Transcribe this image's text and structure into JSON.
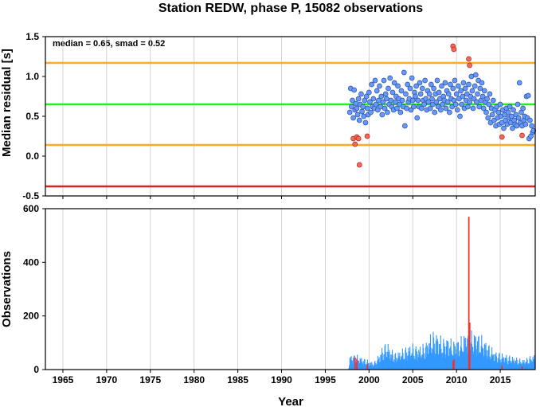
{
  "chart_data": [
    {
      "type": "scatter",
      "title": "Station REDW, phase P, 15082 observations",
      "ylabel": "Median residual [s]",
      "ylim": [
        -0.5,
        1.5
      ],
      "xlim": [
        1963,
        2019
      ],
      "grid": true,
      "y_ticks": [
        "-0.5",
        "0.0",
        "0.5",
        "1.0",
        "1.5"
      ],
      "annotation": "median = 0.65, smad = 0.52",
      "reference_lines": [
        {
          "value": 0.65,
          "color": "#22ee22"
        },
        {
          "value": 1.17,
          "color": "#ffaa22"
        },
        {
          "value": 0.14,
          "color": "#ffaa22"
        },
        {
          "value": -0.38,
          "color": "#dd2222"
        }
      ],
      "normal_color": "#6699ff",
      "outlier_color": "#ff6655",
      "points": [
        [
          1997.8,
          0.55
        ],
        [
          1997.9,
          0.85
        ],
        [
          1998.0,
          0.62
        ],
        [
          1998.1,
          0.7
        ],
        [
          1998.2,
          0.48
        ],
        [
          1998.3,
          0.83
        ],
        [
          1998.4,
          0.58
        ],
        [
          1998.5,
          0.66
        ],
        [
          1998.6,
          0.6
        ],
        [
          1998.7,
          0.52
        ],
        [
          1998.8,
          0.72
        ],
        [
          1998.9,
          0.45
        ],
        [
          1999.0,
          0.65
        ],
        [
          1999.1,
          0.78
        ],
        [
          1999.2,
          0.56
        ],
        [
          1999.3,
          0.62
        ],
        [
          1999.4,
          0.5
        ],
        [
          1999.5,
          0.7
        ],
        [
          1999.6,
          0.42
        ],
        [
          1999.7,
          0.75
        ],
        [
          1999.8,
          0.6
        ],
        [
          1999.9,
          0.52
        ],
        [
          2000.0,
          0.8
        ],
        [
          2000.1,
          0.68
        ],
        [
          2000.2,
          0.55
        ],
        [
          2000.3,
          0.9
        ],
        [
          2000.4,
          0.62
        ],
        [
          2000.5,
          0.72
        ],
        [
          2000.6,
          0.6
        ],
        [
          2000.7,
          0.95
        ],
        [
          2000.8,
          0.65
        ],
        [
          2000.9,
          0.82
        ],
        [
          2001.0,
          0.58
        ],
        [
          2001.1,
          0.7
        ],
        [
          2001.2,
          0.88
        ],
        [
          2001.3,
          0.62
        ],
        [
          2001.4,
          0.75
        ],
        [
          2001.5,
          0.52
        ],
        [
          2001.6,
          0.68
        ],
        [
          2001.7,
          0.95
        ],
        [
          2001.8,
          0.6
        ],
        [
          2001.9,
          0.78
        ],
        [
          2002.0,
          0.72
        ],
        [
          2002.1,
          0.55
        ],
        [
          2002.2,
          0.85
        ],
        [
          2002.3,
          0.65
        ],
        [
          2002.4,
          0.98
        ],
        [
          2002.5,
          0.7
        ],
        [
          2002.6,
          0.62
        ],
        [
          2002.7,
          0.8
        ],
        [
          2002.8,
          0.58
        ],
        [
          2002.9,
          0.92
        ],
        [
          2003.0,
          0.68
        ],
        [
          2003.1,
          0.75
        ],
        [
          2003.2,
          0.6
        ],
        [
          2003.3,
          0.88
        ],
        [
          2003.4,
          0.72
        ],
        [
          2003.5,
          0.65
        ],
        [
          2003.6,
          0.55
        ],
        [
          2003.7,
          0.82
        ],
        [
          2003.8,
          0.7
        ],
        [
          2003.9,
          0.62
        ],
        [
          2004.0,
          1.05
        ],
        [
          2004.1,
          0.38
        ],
        [
          2004.2,
          0.78
        ],
        [
          2004.3,
          0.6
        ],
        [
          2004.4,
          0.9
        ],
        [
          2004.5,
          0.68
        ],
        [
          2004.6,
          0.72
        ],
        [
          2004.7,
          0.85
        ],
        [
          2004.8,
          0.58
        ],
        [
          2004.9,
          0.98
        ],
        [
          2005.0,
          0.7
        ],
        [
          2005.1,
          0.62
        ],
        [
          2005.2,
          0.8
        ],
        [
          2005.3,
          0.75
        ],
        [
          2005.4,
          0.88
        ],
        [
          2005.5,
          0.48
        ],
        [
          2005.6,
          0.7
        ],
        [
          2005.7,
          0.62
        ],
        [
          2005.8,
          0.92
        ],
        [
          2005.9,
          0.78
        ],
        [
          2006.0,
          0.6
        ],
        [
          2006.1,
          0.85
        ],
        [
          2006.2,
          0.7
        ],
        [
          2006.3,
          0.65
        ],
        [
          2006.4,
          0.95
        ],
        [
          2006.5,
          0.72
        ],
        [
          2006.6,
          0.58
        ],
        [
          2006.7,
          0.82
        ],
        [
          2006.8,
          0.68
        ],
        [
          2006.9,
          0.78
        ],
        [
          2007.0,
          0.6
        ],
        [
          2007.1,
          0.9
        ],
        [
          2007.2,
          0.72
        ],
        [
          2007.3,
          0.65
        ],
        [
          2007.4,
          0.85
        ],
        [
          2007.5,
          0.55
        ],
        [
          2007.6,
          0.78
        ],
        [
          2007.7,
          0.68
        ],
        [
          2007.8,
          0.95
        ],
        [
          2007.9,
          0.62
        ],
        [
          2008.0,
          0.8
        ],
        [
          2008.1,
          0.72
        ],
        [
          2008.2,
          0.58
        ],
        [
          2008.3,
          0.88
        ],
        [
          2008.4,
          0.65
        ],
        [
          2008.5,
          0.75
        ],
        [
          2008.6,
          0.7
        ],
        [
          2008.7,
          0.92
        ],
        [
          2008.8,
          0.6
        ],
        [
          2008.9,
          0.82
        ],
        [
          2009.0,
          0.68
        ],
        [
          2009.1,
          0.78
        ],
        [
          2009.2,
          0.55
        ],
        [
          2009.3,
          0.9
        ],
        [
          2009.4,
          0.72
        ],
        [
          2009.5,
          0.62
        ],
        [
          2009.6,
          0.85
        ],
        [
          2009.7,
          0.7
        ],
        [
          2009.8,
          0.95
        ],
        [
          2009.9,
          0.65
        ],
        [
          2010.0,
          0.78
        ],
        [
          2010.1,
          0.58
        ],
        [
          2010.2,
          0.88
        ],
        [
          2010.3,
          0.72
        ],
        [
          2010.4,
          0.5
        ],
        [
          2010.5,
          0.82
        ],
        [
          2010.6,
          0.65
        ],
        [
          2010.7,
          0.75
        ],
        [
          2010.8,
          0.92
        ],
        [
          2010.9,
          0.6
        ],
        [
          2011.0,
          0.85
        ],
        [
          2011.1,
          0.7
        ],
        [
          2011.2,
          0.78
        ],
        [
          2011.3,
          0.62
        ],
        [
          2011.4,
          0.9
        ],
        [
          2011.5,
          0.68
        ],
        [
          2011.6,
          0.75
        ],
        [
          2011.7,
          1.0
        ],
        [
          2011.8,
          0.82
        ],
        [
          2011.9,
          0.6
        ],
        [
          2012.0,
          0.72
        ],
        [
          2012.1,
          0.88
        ],
        [
          2012.2,
          1.02
        ],
        [
          2012.3,
          0.68
        ],
        [
          2012.4,
          0.78
        ],
        [
          2012.5,
          0.95
        ],
        [
          2012.6,
          0.62
        ],
        [
          2012.7,
          0.85
        ],
        [
          2012.8,
          0.7
        ],
        [
          2012.9,
          0.92
        ],
        [
          2013.0,
          0.75
        ],
        [
          2013.1,
          0.6
        ],
        [
          2013.2,
          0.82
        ],
        [
          2013.3,
          0.68
        ],
        [
          2013.4,
          0.55
        ],
        [
          2013.5,
          0.72
        ],
        [
          2013.6,
          0.48
        ],
        [
          2013.7,
          0.65
        ],
        [
          2013.8,
          0.78
        ],
        [
          2013.9,
          0.42
        ],
        [
          2014.0,
          0.6
        ],
        [
          2014.1,
          0.52
        ],
        [
          2014.2,
          0.7
        ],
        [
          2014.3,
          0.45
        ],
        [
          2014.4,
          0.58
        ],
        [
          2014.5,
          0.38
        ],
        [
          2014.6,
          0.62
        ],
        [
          2014.7,
          0.48
        ],
        [
          2014.8,
          0.55
        ],
        [
          2014.9,
          0.4
        ],
        [
          2015.0,
          0.65
        ],
        [
          2015.1,
          0.5
        ],
        [
          2015.2,
          0.42
        ],
        [
          2015.3,
          0.58
        ],
        [
          2015.4,
          0.35
        ],
        [
          2015.5,
          0.52
        ],
        [
          2015.6,
          0.45
        ],
        [
          2015.7,
          0.6
        ],
        [
          2015.8,
          0.4
        ],
        [
          2015.9,
          0.55
        ],
        [
          2016.0,
          0.48
        ],
        [
          2016.1,
          0.62
        ],
        [
          2016.2,
          0.42
        ],
        [
          2016.3,
          0.5
        ],
        [
          2016.4,
          0.35
        ],
        [
          2016.5,
          0.58
        ],
        [
          2016.6,
          0.45
        ],
        [
          2016.7,
          0.4
        ],
        [
          2016.8,
          0.52
        ],
        [
          2016.9,
          0.38
        ],
        [
          2017.0,
          0.65
        ],
        [
          2017.1,
          0.48
        ],
        [
          2017.2,
          0.92
        ],
        [
          2017.3,
          0.42
        ],
        [
          2017.4,
          0.55
        ],
        [
          2017.5,
          0.38
        ],
        [
          2017.6,
          0.6
        ],
        [
          2017.7,
          0.45
        ],
        [
          2017.8,
          0.5
        ],
        [
          2017.9,
          0.4
        ],
        [
          2018.0,
          0.75
        ],
        [
          2018.1,
          0.48
        ],
        [
          2018.2,
          0.76
        ],
        [
          2018.3,
          0.22
        ],
        [
          2018.4,
          0.45
        ],
        [
          2018.5,
          0.25
        ],
        [
          2018.6,
          0.38
        ],
        [
          2018.7,
          0.3
        ],
        [
          2018.8,
          0.32
        ]
      ],
      "outliers": [
        [
          1998.2,
          0.22
        ],
        [
          1998.4,
          0.15
        ],
        [
          1998.6,
          0.24
        ],
        [
          1998.8,
          0.22
        ],
        [
          1998.9,
          -0.11
        ],
        [
          1999.8,
          0.25
        ],
        [
          2009.6,
          1.38
        ],
        [
          2009.7,
          1.34
        ],
        [
          2011.4,
          1.22
        ],
        [
          2011.5,
          1.14
        ],
        [
          2015.2,
          0.24
        ],
        [
          2017.5,
          0.26
        ]
      ]
    },
    {
      "type": "bar",
      "xlabel": "Year",
      "ylabel": "Observations",
      "ylim": [
        0,
        600
      ],
      "xlim": [
        1963,
        2019
      ],
      "grid": true,
      "x_ticks": [
        "1965",
        "1970",
        "1975",
        "1980",
        "1985",
        "1990",
        "1995",
        "2000",
        "2005",
        "2010",
        "2015"
      ],
      "y_ticks": [
        "0",
        "200",
        "400",
        "600"
      ],
      "normal_color": "#3399ff",
      "outlier_color": "#ee3333",
      "spikes": [
        {
          "x": 1998.4,
          "value": 45
        },
        {
          "x": 1998.6,
          "value": 40
        },
        {
          "x": 1999.8,
          "value": 20
        },
        {
          "x": 2009.6,
          "value": 32
        },
        {
          "x": 2009.7,
          "value": 38
        },
        {
          "x": 2011.4,
          "value": 570
        },
        {
          "x": 2011.5,
          "value": 175
        },
        {
          "x": 2015.2,
          "value": 15
        },
        {
          "x": 2017.5,
          "value": 12
        }
      ],
      "envelope": [
        [
          1997.6,
          0
        ],
        [
          1997.8,
          60
        ],
        [
          1998.5,
          58
        ],
        [
          1999.0,
          50
        ],
        [
          1999.5,
          42
        ],
        [
          2000.0,
          35
        ],
        [
          2000.5,
          28
        ],
        [
          2001.0,
          55
        ],
        [
          2001.5,
          90
        ],
        [
          2002.0,
          110
        ],
        [
          2002.5,
          80
        ],
        [
          2003.0,
          65
        ],
        [
          2003.5,
          75
        ],
        [
          2004.0,
          85
        ],
        [
          2004.5,
          95
        ],
        [
          2005.0,
          100
        ],
        [
          2005.5,
          90
        ],
        [
          2006.0,
          95
        ],
        [
          2006.5,
          110
        ],
        [
          2007.0,
          140
        ],
        [
          2007.5,
          150
        ],
        [
          2008.0,
          135
        ],
        [
          2008.5,
          120
        ],
        [
          2009.0,
          130
        ],
        [
          2009.5,
          110
        ],
        [
          2010.0,
          120
        ],
        [
          2010.5,
          125
        ],
        [
          2011.0,
          150
        ],
        [
          2011.5,
          145
        ],
        [
          2012.0,
          150
        ],
        [
          2012.5,
          140
        ],
        [
          2013.0,
          125
        ],
        [
          2013.5,
          105
        ],
        [
          2014.0,
          85
        ],
        [
          2014.5,
          70
        ],
        [
          2015.0,
          65
        ],
        [
          2015.5,
          60
        ],
        [
          2016.0,
          55
        ],
        [
          2016.5,
          50
        ],
        [
          2017.0,
          45
        ],
        [
          2017.5,
          40
        ],
        [
          2018.0,
          45
        ],
        [
          2018.5,
          55
        ],
        [
          2018.9,
          60
        ]
      ]
    }
  ]
}
